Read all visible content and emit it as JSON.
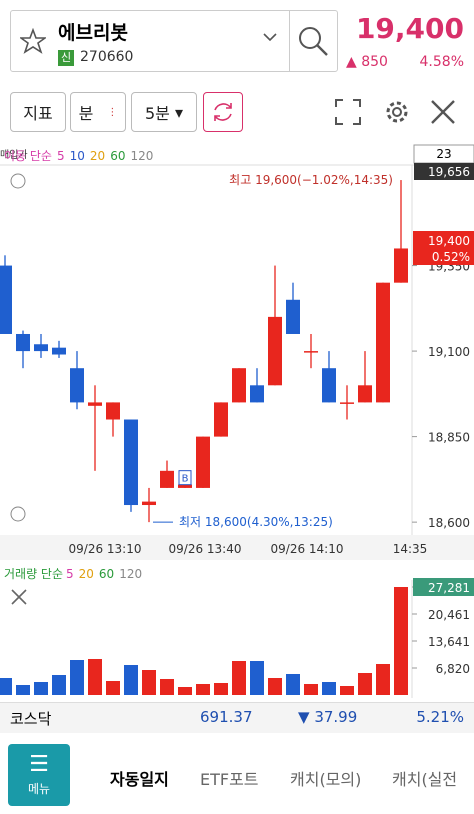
{
  "header": {
    "name": "에브리봇",
    "badge": "신",
    "code": "270660",
    "price": "19,400",
    "change": "850",
    "rate": "4.58%"
  },
  "toolbar": {
    "indicator": "지표",
    "unit": "분",
    "interval": "5분"
  },
  "chart": {
    "type": "candlestick",
    "cost_label": "매입가",
    "ma_label": "이동 단순",
    "ma": [
      {
        "name": "5",
        "color": "#d63ca8"
      },
      {
        "name": "10",
        "color": "#2a58c8"
      },
      {
        "name": "20",
        "color": "#e0a010"
      },
      {
        "name": "60",
        "color": "#2a9a3a"
      },
      {
        "name": "120",
        "color": "#888888"
      }
    ],
    "count": "23",
    "top_label": "19,656",
    "ylim": [
      18577,
      19644
    ],
    "yticks": [
      {
        "value": 18600,
        "label": "18,600"
      },
      {
        "value": 18850,
        "label": "18,850"
      },
      {
        "value": 19100,
        "label": "19,100"
      },
      {
        "value": 19350,
        "label": "19,350"
      }
    ],
    "up_color": "#e8261e",
    "down_color": "#1f5fcf",
    "candles": [
      {
        "open": 19350,
        "high": 19380,
        "low": 19150,
        "close": 19150
      },
      {
        "open": 19150,
        "high": 19160,
        "low": 19050,
        "close": 19100
      },
      {
        "open": 19120,
        "high": 19150,
        "low": 19080,
        "close": 19100
      },
      {
        "open": 19110,
        "high": 19130,
        "low": 19080,
        "close": 19090
      },
      {
        "open": 19050,
        "high": 19100,
        "low": 18930,
        "close": 18950
      },
      {
        "open": 18940,
        "high": 19000,
        "low": 18750,
        "close": 18950
      },
      {
        "open": 18900,
        "high": 18950,
        "low": 18850,
        "close": 18950
      },
      {
        "open": 18900,
        "high": 18900,
        "low": 18630,
        "close": 18650
      },
      {
        "open": 18650,
        "high": 18700,
        "low": 18600,
        "close": 18660
      },
      {
        "open": 18700,
        "high": 18780,
        "low": 18700,
        "close": 18750
      },
      {
        "open": 18700,
        "high": 18750,
        "low": 18700,
        "close": 18710
      },
      {
        "open": 18700,
        "high": 18850,
        "low": 18700,
        "close": 18850
      },
      {
        "open": 18850,
        "high": 18950,
        "low": 18850,
        "close": 18950
      },
      {
        "open": 18950,
        "high": 19050,
        "low": 18950,
        "close": 19050
      },
      {
        "open": 19000,
        "high": 19050,
        "low": 18950,
        "close": 18950
      },
      {
        "open": 19000,
        "high": 19350,
        "low": 19000,
        "close": 19200
      },
      {
        "open": 19250,
        "high": 19300,
        "low": 19150,
        "close": 19150
      },
      {
        "open": 19100,
        "high": 19150,
        "low": 19050,
        "close": 19100
      },
      {
        "open": 19050,
        "high": 19100,
        "low": 18950,
        "close": 18950
      },
      {
        "open": 18950,
        "high": 19000,
        "low": 18900,
        "close": 18950
      },
      {
        "open": 18950,
        "high": 19100,
        "low": 18950,
        "close": 19000
      },
      {
        "open": 18950,
        "high": 19300,
        "low": 18950,
        "close": 19300
      },
      {
        "open": 19300,
        "high": 19600,
        "low": 19300,
        "close": 19400
      }
    ],
    "high_note": "최고 19,600(−1.02%,14:35)",
    "low_note": "최저 18,600(4.30%,13:25)",
    "buy_marker": "B",
    "last_price": "19,400",
    "last_rate": "0.52%",
    "times": [
      "09/26 13:10",
      "09/26 13:40",
      "09/26 14:10",
      "14:35"
    ],
    "volume": {
      "label": "거래량 단순",
      "ma": [
        {
          "name": "5",
          "color": "#d63ca8"
        },
        {
          "name": "20",
          "color": "#e0a010"
        },
        {
          "name": "60",
          "color": "#2a9a3a"
        },
        {
          "name": "120",
          "color": "#888888"
        }
      ],
      "ylim": [
        0,
        27281
      ],
      "yticks": [
        {
          "value": 6820,
          "label": "6,820"
        },
        {
          "value": 13641,
          "label": "13,641"
        },
        {
          "value": 20461,
          "label": "20,461"
        },
        {
          "value": 27281,
          "label": "27,281"
        }
      ],
      "values": [
        4294,
        2526,
        3284,
        5052,
        8841,
        9094,
        3536,
        7578,
        6315,
        4042,
        2021,
        2779,
        3031,
        8588,
        8588,
        4294,
        5305,
        2779,
        3284,
        2273,
        5557,
        7831,
        27281
      ]
    }
  },
  "index": {
    "name": "코스닥",
    "value": "691.37",
    "change": "37.99",
    "rate": "5.21%"
  },
  "nav": {
    "menu": "메뉴",
    "tabs": [
      "자동일지",
      "ETF포트",
      "캐치(모의)",
      "캐치(실전"
    ]
  }
}
